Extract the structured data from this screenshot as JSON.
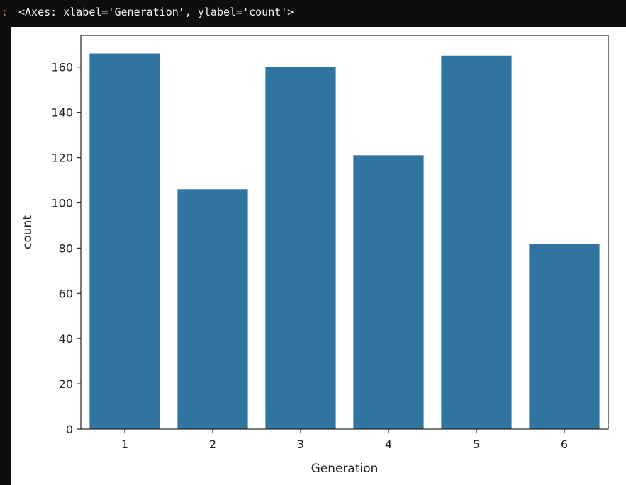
{
  "output": {
    "prompt": ":",
    "text": "<Axes: xlabel='Generation', ylabel='count'>"
  },
  "colors": {
    "bar": "#3274a1",
    "axis": "#222222",
    "background": "#ffffff",
    "page": "#0e0e0e",
    "prompt": "#e6703a"
  },
  "chart_data": {
    "type": "bar",
    "title": "",
    "xlabel": "Generation",
    "ylabel": "count",
    "categories": [
      "1",
      "2",
      "3",
      "4",
      "5",
      "6"
    ],
    "values": [
      166,
      106,
      160,
      121,
      165,
      82
    ],
    "ylim": [
      0,
      174
    ],
    "yticks": [
      0,
      20,
      40,
      60,
      80,
      100,
      120,
      140,
      160
    ],
    "grid": false,
    "legend": "none"
  }
}
